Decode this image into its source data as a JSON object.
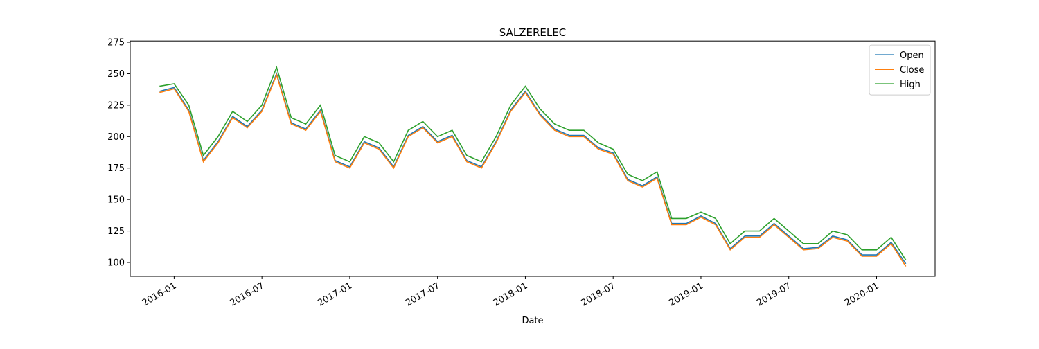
{
  "chart_data": {
    "type": "line",
    "title": "SALZERELEC",
    "xlabel": "Date",
    "x": [
      "2015-12",
      "2016-01",
      "2016-02",
      "2016-03",
      "2016-04",
      "2016-05",
      "2016-06",
      "2016-07",
      "2016-08",
      "2016-09",
      "2016-10",
      "2016-11",
      "2016-12",
      "2017-01",
      "2017-02",
      "2017-03",
      "2017-04",
      "2017-05",
      "2017-06",
      "2017-07",
      "2017-08",
      "2017-09",
      "2017-10",
      "2017-11",
      "2017-12",
      "2018-01",
      "2018-02",
      "2018-03",
      "2018-04",
      "2018-05",
      "2018-06",
      "2018-07",
      "2018-08",
      "2018-09",
      "2018-10",
      "2018-11",
      "2018-12",
      "2019-01",
      "2019-02",
      "2019-03",
      "2019-04",
      "2019-05",
      "2019-06",
      "2019-07",
      "2019-08",
      "2019-09",
      "2019-10",
      "2019-11",
      "2019-12",
      "2020-01",
      "2020-02",
      "2020-03"
    ],
    "series": [
      {
        "name": "Open",
        "color": "#1f77b4",
        "values": [
          236,
          239,
          221,
          181,
          196,
          216,
          208,
          221,
          250,
          211,
          206,
          221,
          181,
          176,
          196,
          191,
          176,
          201,
          208,
          196,
          201,
          181,
          176,
          196,
          221,
          236,
          218,
          206,
          201,
          201,
          191,
          187,
          166,
          161,
          168,
          131,
          131,
          137,
          131,
          111,
          121,
          121,
          131,
          121,
          111,
          112,
          121,
          118,
          106,
          106,
          116,
          99
        ]
      },
      {
        "name": "Close",
        "color": "#ff7f0e",
        "values": [
          235,
          238,
          220,
          180,
          195,
          215,
          207,
          220,
          249,
          210,
          205,
          220,
          180,
          175,
          195,
          190,
          175,
          200,
          207,
          195,
          200,
          180,
          175,
          195,
          220,
          235,
          217,
          205,
          200,
          200,
          190,
          186,
          165,
          160,
          167,
          130,
          130,
          136,
          130,
          110,
          120,
          120,
          130,
          120,
          110,
          111,
          120,
          117,
          105,
          105,
          115,
          97
        ]
      },
      {
        "name": "High",
        "color": "#2ca02c",
        "values": [
          240,
          242,
          225,
          185,
          200,
          220,
          212,
          225,
          255,
          215,
          210,
          225,
          185,
          180,
          200,
          195,
          180,
          205,
          212,
          200,
          205,
          185,
          180,
          200,
          225,
          240,
          222,
          210,
          205,
          205,
          195,
          190,
          170,
          165,
          172,
          135,
          135,
          140,
          135,
          115,
          125,
          125,
          135,
          125,
          115,
          115,
          125,
          122,
          110,
          110,
          120,
          102
        ]
      }
    ],
    "xlim": [
      "2015-10",
      "2020-05"
    ],
    "xticks": [
      "2016-01",
      "2016-07",
      "2017-01",
      "2017-07",
      "2018-01",
      "2018-07",
      "2019-01",
      "2019-07",
      "2020-01"
    ],
    "ylim": [
      89,
      276
    ],
    "yticks": [
      100,
      125,
      150,
      175,
      200,
      225,
      250,
      275
    ],
    "legend": "upper right"
  }
}
